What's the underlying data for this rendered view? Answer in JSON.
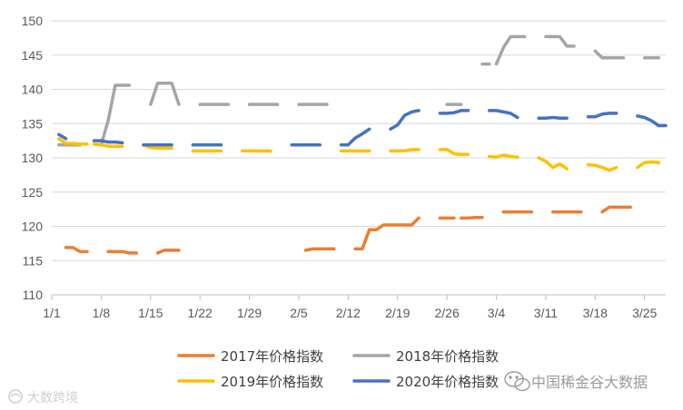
{
  "chart_data": {
    "type": "line",
    "title": "",
    "xlabel": "",
    "ylabel": "",
    "ylim": [
      110,
      150
    ],
    "yticks": [
      110,
      115,
      120,
      125,
      130,
      135,
      140,
      145,
      150
    ],
    "xlim": [
      1,
      88
    ],
    "xticks": [
      {
        "day": 1,
        "label": "1/1"
      },
      {
        "day": 8,
        "label": "1/8"
      },
      {
        "day": 15,
        "label": "1/15"
      },
      {
        "day": 22,
        "label": "1/22"
      },
      {
        "day": 29,
        "label": "1/29"
      },
      {
        "day": 36,
        "label": "2/5"
      },
      {
        "day": 43,
        "label": "2/12"
      },
      {
        "day": 50,
        "label": "2/19"
      },
      {
        "day": 57,
        "label": "2/26"
      },
      {
        "day": 64,
        "label": "3/4"
      },
      {
        "day": 71,
        "label": "3/11"
      },
      {
        "day": 78,
        "label": "3/18"
      },
      {
        "day": 85,
        "label": "3/25"
      }
    ],
    "grid": "horizontal",
    "legend_position": "bottom",
    "series": [
      {
        "name": "2017年价格指数",
        "color": "#ED7D31",
        "segments": [
          [
            [
              3,
              116.9
            ],
            [
              4,
              116.9
            ],
            [
              5,
              116.3
            ],
            [
              6,
              116.3
            ]
          ],
          [
            [
              9,
              116.3
            ],
            [
              10,
              116.3
            ],
            [
              11,
              116.3
            ],
            [
              12,
              116.1
            ],
            [
              13,
              116.1
            ]
          ],
          [
            [
              16,
              116.1
            ],
            [
              17,
              116.5
            ],
            [
              18,
              116.5
            ],
            [
              19,
              116.5
            ]
          ],
          [
            [
              37,
              116.5
            ],
            [
              38,
              116.7
            ],
            [
              39,
              116.7
            ],
            [
              40,
              116.7
            ],
            [
              41,
              116.7
            ]
          ],
          [
            [
              44,
              116.7
            ],
            [
              45,
              116.7
            ],
            [
              46,
              119.5
            ],
            [
              47,
              119.5
            ],
            [
              48,
              120.2
            ],
            [
              49,
              120.2
            ],
            [
              50,
              120.2
            ],
            [
              51,
              120.2
            ],
            [
              52,
              120.2
            ],
            [
              53,
              121.2
            ]
          ],
          [
            [
              56,
              121.2
            ],
            [
              57,
              121.2
            ],
            [
              58,
              121.2
            ]
          ],
          [
            [
              59,
              121.2
            ],
            [
              60,
              121.2
            ],
            [
              61,
              121.3
            ],
            [
              62,
              121.3
            ]
          ],
          [
            [
              65,
              122.1
            ],
            [
              66,
              122.1
            ],
            [
              67,
              122.1
            ],
            [
              68,
              122.1
            ],
            [
              69,
              122.1
            ]
          ],
          [
            [
              72,
              122.1
            ],
            [
              73,
              122.1
            ],
            [
              74,
              122.1
            ],
            [
              75,
              122.1
            ],
            [
              76,
              122.1
            ]
          ],
          [
            [
              79,
              122.1
            ],
            [
              80,
              122.8
            ],
            [
              81,
              122.8
            ],
            [
              82,
              122.8
            ],
            [
              83,
              122.8
            ]
          ]
        ]
      },
      {
        "name": "2018年价格指数",
        "color": "#A5A5A5",
        "segments": [
          [
            [
              2,
              131.9
            ],
            [
              3,
              131.9
            ],
            [
              4,
              131.9
            ],
            [
              5,
              131.9
            ]
          ],
          [
            [
              8,
              131.9
            ],
            [
              9,
              135.5
            ],
            [
              10,
              140.6
            ],
            [
              11,
              140.6
            ],
            [
              12,
              140.6
            ]
          ],
          [
            [
              15,
              137.8
            ],
            [
              16,
              140.9
            ],
            [
              17,
              140.9
            ],
            [
              18,
              140.9
            ],
            [
              19,
              137.8
            ]
          ],
          [
            [
              22,
              137.8
            ],
            [
              23,
              137.8
            ],
            [
              24,
              137.8
            ],
            [
              25,
              137.8
            ],
            [
              26,
              137.8
            ]
          ],
          [
            [
              29,
              137.8
            ],
            [
              30,
              137.8
            ],
            [
              31,
              137.8
            ],
            [
              32,
              137.8
            ],
            [
              33,
              137.8
            ]
          ],
          [
            [
              36,
              137.8
            ],
            [
              37,
              137.8
            ],
            [
              38,
              137.8
            ],
            [
              39,
              137.8
            ],
            [
              40,
              137.8
            ]
          ],
          [
            [
              57,
              137.8
            ],
            [
              58,
              137.8
            ],
            [
              59,
              137.8
            ]
          ],
          [
            [
              62,
              143.7
            ],
            [
              63,
              143.7
            ]
          ],
          [
            [
              64,
              143.7
            ],
            [
              65,
              146.1
            ],
            [
              66,
              147.7
            ],
            [
              67,
              147.7
            ],
            [
              68,
              147.7
            ]
          ],
          [
            [
              71,
              147.7
            ],
            [
              72,
              147.7
            ],
            [
              73,
              147.7
            ],
            [
              74,
              146.3
            ],
            [
              75,
              146.3
            ]
          ],
          [
            [
              78,
              145.6
            ],
            [
              79,
              144.6
            ],
            [
              80,
              144.6
            ],
            [
              81,
              144.6
            ],
            [
              82,
              144.6
            ]
          ],
          [
            [
              85,
              144.6
            ],
            [
              86,
              144.6
            ],
            [
              87,
              144.6
            ]
          ]
        ]
      },
      {
        "name": "2019年价格指数",
        "color": "#FFC000",
        "segments": [
          [
            [
              2,
              132.8
            ],
            [
              3,
              132.1
            ],
            [
              4,
              132.1
            ],
            [
              5,
              132.0
            ],
            [
              6,
              132.0
            ]
          ],
          [
            [
              7,
              132.0
            ],
            [
              8,
              131.9
            ],
            [
              9,
              131.7
            ],
            [
              10,
              131.7
            ],
            [
              11,
              131.7
            ]
          ],
          [
            [
              14,
              131.9
            ],
            [
              15,
              131.5
            ],
            [
              16,
              131.4
            ],
            [
              17,
              131.4
            ],
            [
              18,
              131.4
            ]
          ],
          [
            [
              21,
              131.0
            ],
            [
              22,
              131.0
            ],
            [
              23,
              131.0
            ],
            [
              24,
              131.0
            ],
            [
              25,
              131.0
            ]
          ],
          [
            [
              28,
              131.0
            ],
            [
              29,
              131.0
            ],
            [
              30,
              131.0
            ],
            [
              31,
              131.0
            ],
            [
              32,
              131.0
            ]
          ],
          [
            [
              42,
              131.0
            ],
            [
              43,
              131.0
            ],
            [
              44,
              131.0
            ],
            [
              45,
              131.0
            ],
            [
              46,
              131.0
            ]
          ],
          [
            [
              49,
              131.0
            ],
            [
              50,
              131.0
            ],
            [
              51,
              131.0
            ],
            [
              52,
              131.2
            ],
            [
              53,
              131.2
            ]
          ],
          [
            [
              56,
              131.2
            ],
            [
              57,
              131.2
            ],
            [
              58,
              130.6
            ],
            [
              59,
              130.5
            ],
            [
              60,
              130.5
            ]
          ],
          [
            [
              63,
              130.2
            ],
            [
              64,
              130.1
            ],
            [
              65,
              130.4
            ],
            [
              66,
              130.2
            ],
            [
              67,
              130.1
            ]
          ],
          [
            [
              70,
              130.0
            ],
            [
              71,
              129.5
            ],
            [
              72,
              128.6
            ],
            [
              73,
              129.1
            ],
            [
              74,
              128.4
            ]
          ],
          [
            [
              77,
              129.0
            ],
            [
              78,
              128.9
            ],
            [
              79,
              128.6
            ],
            [
              80,
              128.2
            ],
            [
              81,
              128.6
            ]
          ],
          [
            [
              84,
              128.6
            ],
            [
              85,
              129.3
            ],
            [
              86,
              129.4
            ],
            [
              87,
              129.3
            ]
          ]
        ]
      },
      {
        "name": "2020年价格指数",
        "color": "#4472C4",
        "segments": [
          [
            [
              2,
              133.4
            ],
            [
              3,
              132.8
            ]
          ],
          [
            [
              7,
              132.5
            ],
            [
              8,
              132.5
            ],
            [
              9,
              132.3
            ],
            [
              10,
              132.3
            ],
            [
              11,
              132.2
            ]
          ],
          [
            [
              14,
              131.9
            ],
            [
              15,
              131.9
            ],
            [
              16,
              131.9
            ],
            [
              17,
              131.9
            ],
            [
              18,
              131.9
            ]
          ],
          [
            [
              21,
              131.9
            ],
            [
              22,
              131.9
            ],
            [
              23,
              131.9
            ],
            [
              24,
              131.9
            ],
            [
              25,
              131.9
            ]
          ],
          [
            [
              35,
              131.9
            ],
            [
              36,
              131.9
            ],
            [
              37,
              131.9
            ],
            [
              38,
              131.9
            ],
            [
              39,
              131.9
            ]
          ],
          [
            [
              42,
              131.9
            ],
            [
              43,
              131.9
            ],
            [
              44,
              132.9
            ],
            [
              45,
              133.5
            ],
            [
              46,
              134.2
            ]
          ],
          [
            [
              49,
              134.2
            ],
            [
              50,
              134.8
            ],
            [
              51,
              136.2
            ],
            [
              52,
              136.7
            ],
            [
              53,
              136.9
            ]
          ],
          [
            [
              56,
              136.5
            ],
            [
              57,
              136.5
            ],
            [
              58,
              136.6
            ],
            [
              59,
              136.9
            ],
            [
              60,
              136.9
            ]
          ],
          [
            [
              63,
              136.9
            ],
            [
              64,
              136.9
            ],
            [
              65,
              136.7
            ],
            [
              66,
              136.5
            ],
            [
              67,
              135.9
            ]
          ],
          [
            [
              70,
              135.8
            ],
            [
              71,
              135.8
            ],
            [
              72,
              135.9
            ],
            [
              73,
              135.8
            ],
            [
              74,
              135.8
            ]
          ],
          [
            [
              77,
              136.0
            ],
            [
              78,
              136.0
            ],
            [
              79,
              136.4
            ],
            [
              80,
              136.5
            ],
            [
              81,
              136.5
            ]
          ],
          [
            [
              84,
              136.1
            ],
            [
              85,
              135.9
            ],
            [
              86,
              135.4
            ],
            [
              87,
              134.7
            ],
            [
              88,
              134.7
            ]
          ]
        ]
      }
    ]
  },
  "watermark": {
    "center_text": "中国稀金谷大数据",
    "corner_text": "大数跨境",
    "center_icon": "wechat-icon",
    "corner_icon": "logo-icon"
  }
}
